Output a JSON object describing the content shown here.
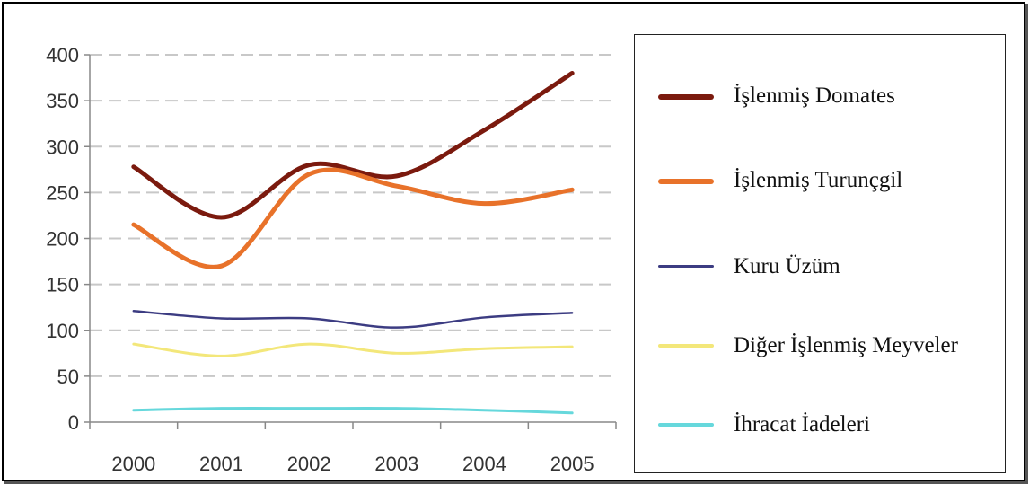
{
  "chart_data": {
    "type": "line",
    "categories": [
      "2000",
      "2001",
      "2002",
      "2003",
      "2004",
      "2005"
    ],
    "ylim": [
      0,
      400
    ],
    "yticks": [
      0,
      50,
      100,
      150,
      200,
      250,
      300,
      350,
      400
    ],
    "grid": true,
    "legend_position": "right",
    "series": [
      {
        "name": "İşlenmiş Domates",
        "color": "#7b1a0e",
        "values": [
          278,
          223,
          280,
          268,
          318,
          380
        ]
      },
      {
        "name": "İşlenmiş Turunçgil",
        "color": "#e8722a",
        "values": [
          215,
          170,
          270,
          257,
          238,
          253
        ]
      },
      {
        "name": "Kuru Üzüm",
        "color": "#3c3c82",
        "values": [
          121,
          113,
          113,
          103,
          114,
          119
        ]
      },
      {
        "name": "Diğer İşlenmiş Meyveler",
        "color": "#f3e77a",
        "values": [
          85,
          72,
          85,
          75,
          80,
          82
        ]
      },
      {
        "name": "İhracat İadeleri",
        "color": "#66d8dc",
        "values": [
          13,
          15,
          15,
          15,
          13,
          10
        ]
      }
    ]
  }
}
